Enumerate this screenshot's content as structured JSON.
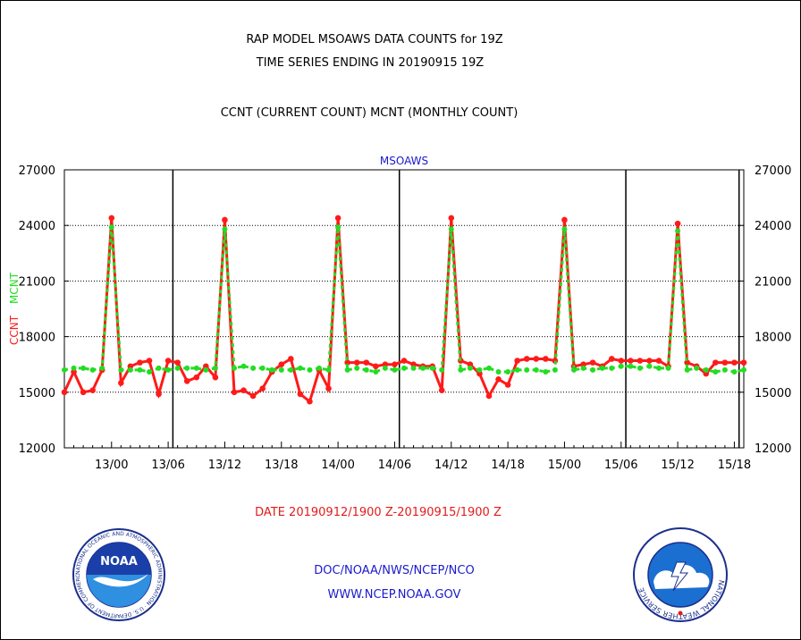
{
  "header": {
    "title_line1": "RAP MODEL MSOAWS DATA COUNTS for 19Z",
    "title_line2": "TIME SERIES ENDING IN 20190915 19Z",
    "subtitle": "CCNT (CURRENT COUNT) MCNT (MONTHLY COUNT)"
  },
  "footer": {
    "date_range": "DATE 20190912/1900 Z-20190915/1900 Z",
    "org": "DOC/NOAA/NWS/NCEP/NCO",
    "url": "WWW.NCEP.NOAA.GOV"
  },
  "logos": {
    "left": {
      "name": "noaa-logo",
      "text": "NOAA",
      "ring_text": "NATIONAL OCEANIC AND ATMOSPHERIC ADMINISTRATION · U.S. DEPARTMENT OF COMMERCE"
    },
    "right": {
      "name": "nws-logo",
      "ring_text": "NATIONAL WEATHER SERVICE"
    }
  },
  "colors": {
    "ccnt": "#ff1a1a",
    "mcnt": "#22dd22",
    "text_blue": "#1a1acc",
    "text_red": "#e41a1a"
  },
  "chart_data": {
    "type": "line",
    "title": "MSOAWS",
    "ylabel_left": "CCNT",
    "ylabel_right_of_left": "MCNT",
    "ylim": [
      12000,
      27000
    ],
    "yticks": [
      12000,
      15000,
      18000,
      21000,
      24000,
      27000
    ],
    "ytick_labels": [
      "12000",
      "15000",
      "18000",
      "21000",
      "24000",
      "27000"
    ],
    "xlim": [
      0,
      72
    ],
    "xticks": [
      5,
      11,
      17,
      23,
      29,
      35,
      41,
      47,
      53,
      59,
      65,
      71
    ],
    "xtick_labels": [
      "13/00",
      "13/06",
      "13/12",
      "13/18",
      "14/00",
      "14/06",
      "14/12",
      "14/18",
      "15/00",
      "15/06",
      "15/12",
      "15/18"
    ],
    "day_boundaries": [
      11.5,
      35.5,
      59.5
    ],
    "end_marker": 71.5,
    "grid_y": [
      15000,
      18000,
      21000,
      24000
    ],
    "series": [
      {
        "name": "CCNT",
        "color": "#ff1a1a",
        "x": [
          0,
          1,
          2,
          3,
          4,
          5,
          6,
          7,
          8,
          9,
          10,
          11,
          12,
          13,
          14,
          15,
          16,
          17,
          18,
          19,
          20,
          21,
          22,
          23,
          24,
          25,
          26,
          27,
          28,
          29,
          30,
          31,
          32,
          33,
          34,
          35,
          36,
          37,
          38,
          39,
          40,
          41,
          42,
          43,
          44,
          45,
          46,
          47,
          48,
          49,
          50,
          51,
          52,
          53,
          54,
          55,
          56,
          57,
          58,
          59,
          60,
          61,
          62,
          63,
          64,
          65,
          66,
          67,
          68,
          69,
          70,
          71,
          72
        ],
        "values": [
          15000,
          16100,
          15000,
          15100,
          16200,
          24400,
          15500,
          16400,
          16600,
          16700,
          14900,
          16700,
          16600,
          15600,
          15800,
          16400,
          15800,
          24300,
          15000,
          15100,
          14800,
          15200,
          16100,
          16500,
          16800,
          14900,
          14500,
          16200,
          15200,
          24400,
          16600,
          16600,
          16600,
          16400,
          16500,
          16500,
          16700,
          16500,
          16400,
          16400,
          15100,
          24400,
          16700,
          16500,
          16000,
          14800,
          15700,
          15400,
          16700,
          16800,
          16800,
          16800,
          16700,
          24300,
          16400,
          16500,
          16600,
          16400,
          16800,
          16700,
          16700,
          16700,
          16700,
          16700,
          16400,
          24100,
          16600,
          16400,
          16000,
          16600,
          16600,
          16600,
          16600
        ]
      },
      {
        "name": "MCNT",
        "color": "#22dd22",
        "x": [
          0,
          1,
          2,
          3,
          4,
          5,
          6,
          7,
          8,
          9,
          10,
          11,
          12,
          13,
          14,
          15,
          16,
          17,
          18,
          19,
          20,
          21,
          22,
          23,
          24,
          25,
          26,
          27,
          28,
          29,
          30,
          31,
          32,
          33,
          34,
          35,
          36,
          37,
          38,
          39,
          40,
          41,
          42,
          43,
          44,
          45,
          46,
          47,
          48,
          49,
          50,
          51,
          52,
          53,
          54,
          55,
          56,
          57,
          58,
          59,
          60,
          61,
          62,
          63,
          64,
          65,
          66,
          67,
          68,
          69,
          70,
          71,
          72
        ],
        "values": [
          16200,
          16300,
          16300,
          16200,
          16300,
          23900,
          16200,
          16200,
          16200,
          16100,
          16300,
          16200,
          16300,
          16300,
          16300,
          16200,
          16300,
          23800,
          16300,
          16400,
          16300,
          16300,
          16200,
          16200,
          16200,
          16300,
          16200,
          16300,
          16200,
          23900,
          16200,
          16300,
          16200,
          16100,
          16300,
          16200,
          16300,
          16300,
          16300,
          16300,
          16200,
          23800,
          16200,
          16300,
          16200,
          16300,
          16100,
          16100,
          16200,
          16200,
          16200,
          16100,
          16200,
          23800,
          16200,
          16300,
          16200,
          16300,
          16300,
          16400,
          16400,
          16300,
          16400,
          16300,
          16300,
          23700,
          16200,
          16300,
          16200,
          16100,
          16200,
          16100,
          16200
        ]
      }
    ]
  }
}
